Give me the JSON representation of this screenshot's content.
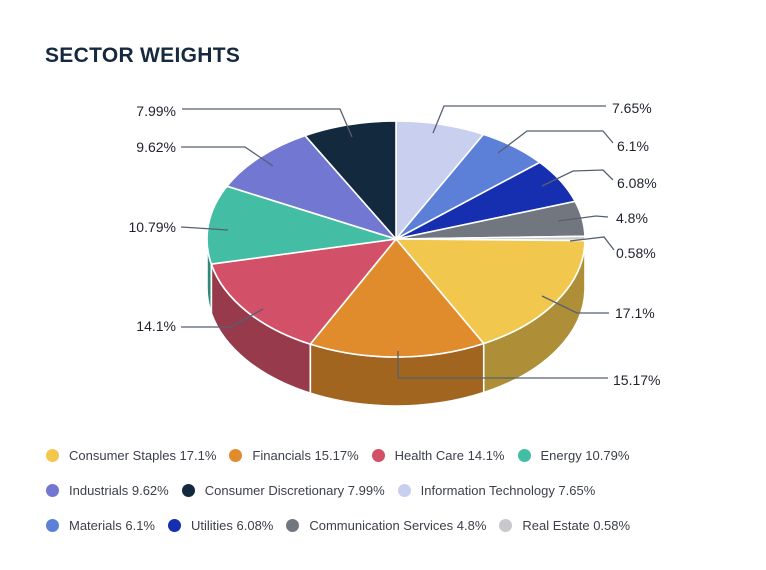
{
  "page": {
    "title": "SECTOR WEIGHTS"
  },
  "chart_data": {
    "type": "pie",
    "style": "3d",
    "title": "SECTOR WEIGHTS",
    "unit": "%",
    "start_angle": "12-oclock-clockwise",
    "legend_position": "bottom",
    "sectors": [
      {
        "name": "Information Technology",
        "value": 7.65,
        "label": "7.65%",
        "color": "#C9CFEE"
      },
      {
        "name": "Materials",
        "value": 6.1,
        "label": "6.1%",
        "color": "#5C80D8"
      },
      {
        "name": "Utilities",
        "value": 6.08,
        "label": "6.08%",
        "color": "#162FB0"
      },
      {
        "name": "Communication Services",
        "value": 4.8,
        "label": "4.8%",
        "color": "#72777F"
      },
      {
        "name": "Real Estate",
        "value": 0.58,
        "label": "0.58%",
        "color": "#C7C9CC"
      },
      {
        "name": "Consumer Staples",
        "value": 17.1,
        "label": "17.1%",
        "color": "#F2C74E"
      },
      {
        "name": "Financials",
        "value": 15.17,
        "label": "15.17%",
        "color": "#E08C2D"
      },
      {
        "name": "Health Care",
        "value": 14.1,
        "label": "14.1%",
        "color": "#D25169"
      },
      {
        "name": "Energy",
        "value": 10.79,
        "label": "10.79%",
        "color": "#43BEA5"
      },
      {
        "name": "Industrials",
        "value": 9.62,
        "label": "9.62%",
        "color": "#7278D1"
      },
      {
        "name": "Consumer Discretionary",
        "value": 7.99,
        "label": "7.99%",
        "color": "#13293D"
      }
    ],
    "legend_rows": [
      [
        5,
        6,
        7,
        8
      ],
      [
        9,
        10,
        0
      ],
      [
        1,
        2,
        3,
        4
      ]
    ]
  },
  "colors": {
    "background": "#FFFFFF",
    "title_text": "#16293F",
    "callout_text": "#1E222B",
    "legend_text": "#3C4048",
    "leader_line": "#566070",
    "slice_border": "#FFFFFF"
  }
}
